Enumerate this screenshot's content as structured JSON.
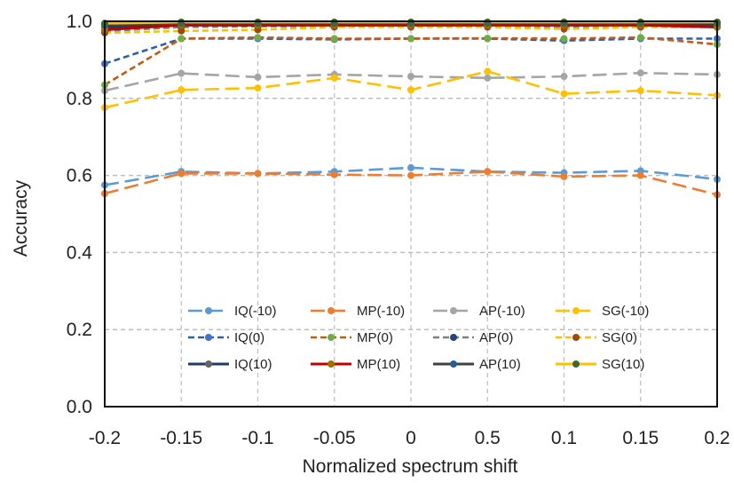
{
  "chart_data": {
    "type": "line",
    "title": "",
    "xlabel": "Normalized spectrum shift",
    "ylabel": "Accuracy",
    "ylim": [
      0,
      1
    ],
    "grid": true,
    "legend_position": "lower-center",
    "categories": [
      "-0.2",
      "-0.15",
      "-0.1",
      "-0.05",
      "0",
      "0.5",
      "0.1",
      "0.15",
      "0.2"
    ],
    "y_ticks": [
      "0.0",
      "0.2",
      "0.4",
      "0.6",
      "0.8",
      "1.0"
    ],
    "y_tick_values": [
      0,
      0.2,
      0.4,
      0.6,
      0.8,
      1.0
    ],
    "series": [
      {
        "name": "IQ(-10)",
        "style": "longdash",
        "color": "#5b9bd5",
        "values": [
          0.575,
          0.61,
          0.605,
          0.61,
          0.62,
          0.61,
          0.607,
          0.612,
          0.59
        ]
      },
      {
        "name": "MP(-10)",
        "style": "longdash",
        "color": "#ed7d31",
        "values": [
          0.553,
          0.605,
          0.605,
          0.602,
          0.6,
          0.61,
          0.597,
          0.6,
          0.55
        ]
      },
      {
        "name": "AP(-10)",
        "style": "longdash",
        "color": "#a5a5a5",
        "values": [
          0.82,
          0.865,
          0.855,
          0.862,
          0.857,
          0.853,
          0.857,
          0.866,
          0.862
        ]
      },
      {
        "name": "SG(-10)",
        "style": "longdash",
        "color": "#ffc000",
        "values": [
          0.776,
          0.822,
          0.827,
          0.853,
          0.822,
          0.87,
          0.812,
          0.82,
          0.808
        ]
      },
      {
        "name": "IQ(0)",
        "style": "dash",
        "color": "#2e5fa8",
        "values": [
          0.89,
          0.955,
          0.955,
          0.953,
          0.955,
          0.955,
          0.95,
          0.955,
          0.955
        ]
      },
      {
        "name": "MP(0)",
        "style": "dash",
        "color": "#c55a11",
        "values": [
          0.835,
          0.955,
          0.958,
          0.955,
          0.955,
          0.956,
          0.955,
          0.958,
          0.94
        ]
      },
      {
        "name": "AP(0)",
        "style": "dash",
        "color": "#7f7f7f",
        "values": [
          0.975,
          0.985,
          0.987,
          0.987,
          0.987,
          0.987,
          0.985,
          0.987,
          0.985
        ]
      },
      {
        "name": "SG(0)",
        "style": "dash",
        "color": "#f5c400",
        "values": [
          0.97,
          0.975,
          0.978,
          0.985,
          0.985,
          0.985,
          0.98,
          0.985,
          0.985
        ]
      },
      {
        "name": "IQ(10)",
        "style": "solid",
        "color": "#1f3864",
        "values": [
          0.985,
          0.99,
          0.99,
          0.99,
          0.99,
          0.99,
          0.99,
          0.99,
          0.99
        ]
      },
      {
        "name": "MP(10)",
        "style": "solid",
        "color": "#c00000",
        "values": [
          0.978,
          0.99,
          0.99,
          0.99,
          0.99,
          0.99,
          0.99,
          0.99,
          0.985
        ]
      },
      {
        "name": "AP(10)",
        "style": "solid",
        "color": "#404040",
        "values": [
          0.99,
          0.995,
          0.995,
          0.995,
          0.995,
          0.995,
          0.995,
          0.995,
          0.995
        ]
      },
      {
        "name": "SG(10)",
        "style": "solid",
        "color": "#ffc000",
        "values": [
          0.995,
          0.998,
          0.998,
          0.998,
          0.998,
          0.998,
          0.998,
          0.998,
          0.998
        ]
      }
    ],
    "marker_colors": {
      "IQ(-10)": "#5b9bd5",
      "MP(-10)": "#ed7d31",
      "AP(-10)": "#a5a5a5",
      "SG(-10)": "#ffc000",
      "IQ(0)": "#4472c4",
      "MP(0)": "#70ad47",
      "AP(0)": "#264478",
      "SG(0)": "#9e480e",
      "IQ(10)": "#636363",
      "MP(10)": "#997300",
      "AP(10)": "#255e91",
      "SG(10)": "#43682b"
    }
  }
}
